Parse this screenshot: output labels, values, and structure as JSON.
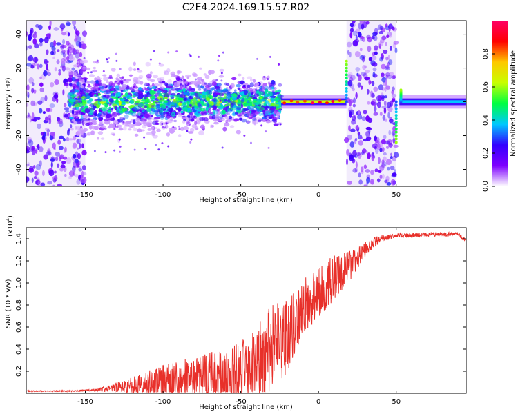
{
  "title": "C2E4.2024.169.15.57.R02",
  "colors": {
    "snr_line": "#e8302a",
    "frame": "#000000",
    "noise_band": "#ece4fb"
  },
  "chart_data": [
    {
      "type": "heatmap",
      "xlabel": "Height of straight line (km)",
      "ylabel": "Frequency (Hz)",
      "xlim": [
        -188,
        95
      ],
      "ylim": [
        -50,
        48
      ],
      "x_ticks": [
        -150,
        -100,
        -50,
        0,
        50
      ],
      "x_tick_labels": [
        "-150",
        "-100",
        "-50",
        "0",
        "50"
      ],
      "y_ticks": [
        -40,
        -20,
        0,
        20,
        40
      ],
      "y_tick_labels": [
        "-40",
        "-20",
        "0",
        "20",
        "40"
      ],
      "colorbar": {
        "label": "Normalized spectral amplitude",
        "range": [
          0,
          1
        ],
        "ticks": [
          0.0,
          0.2,
          0.4,
          0.6,
          0.8
        ],
        "tick_labels": [
          "0.0",
          "0.2",
          "0.4",
          "0.6",
          "0.8"
        ],
        "colormap": [
          "#ffffff",
          "#7e00ff",
          "#3300ff",
          "#00c8ff",
          "#00ff40",
          "#c8ff00",
          "#ffc800",
          "#ff0000",
          "#ff0066"
        ]
      },
      "regions": [
        {
          "x": [
            -188,
            -150
          ],
          "f_spread": 48,
          "amplitude": 0.2,
          "pattern": "broadband noise"
        },
        {
          "x": [
            -160,
            -24
          ],
          "f_spread": 8,
          "amplitude": 0.45,
          "pattern": "signal band centered at 0 Hz"
        },
        {
          "x": [
            -24,
            18
          ],
          "f_spread": 2,
          "amplitude": 0.85,
          "pattern": "narrow carrier with red peaks"
        },
        {
          "x": [
            18,
            50
          ],
          "f_spread": 48,
          "amplitude": 0.2,
          "pattern": "broadband noise gap"
        },
        {
          "x": [
            52,
            95
          ],
          "f_spread": 2,
          "amplitude": 0.5,
          "pattern": "clean narrow carrier"
        }
      ]
    },
    {
      "type": "line",
      "xlabel": "Height of straight line (km)",
      "ylabel": "SNR (10 * v/v)",
      "y_multiplier": "(x10",
      "y_multiplier_exp": "4",
      "y_multiplier_close": ")",
      "xlim": [
        -188,
        95
      ],
      "ylim": [
        0,
        1.5
      ],
      "x_ticks": [
        -150,
        -100,
        -50,
        0,
        50
      ],
      "x_tick_labels": [
        "-150",
        "-100",
        "-50",
        "0",
        "50"
      ],
      "y_ticks": [
        0.2,
        0.4,
        0.6,
        0.8,
        1.0,
        1.2,
        1.4
      ],
      "y_tick_labels": [
        "0.2",
        "0.4",
        "0.6",
        "0.8",
        "1.0",
        "1.2",
        "1.4"
      ],
      "series": [
        {
          "x": [
            -188,
            -160,
            -145,
            -135,
            -125,
            -115,
            -105,
            -95,
            -85,
            -75,
            -65,
            -55,
            -45,
            -38,
            -32,
            -28,
            -25,
            -22,
            -19,
            -16,
            -12,
            -8,
            -4,
            0,
            5,
            10,
            15,
            20,
            25,
            30,
            35,
            40,
            50,
            60,
            70,
            80,
            90,
            95
          ],
          "mean": [
            0.02,
            0.02,
            0.03,
            0.04,
            0.06,
            0.08,
            0.1,
            0.12,
            0.14,
            0.16,
            0.18,
            0.2,
            0.24,
            0.3,
            0.38,
            0.42,
            0.45,
            0.48,
            0.55,
            0.62,
            0.72,
            0.8,
            0.85,
            0.9,
            0.98,
            1.05,
            1.1,
            1.15,
            1.22,
            1.3,
            1.36,
            1.4,
            1.43,
            1.43,
            1.44,
            1.44,
            1.44,
            1.38
          ],
          "amp": [
            0.005,
            0.006,
            0.01,
            0.03,
            0.06,
            0.1,
            0.14,
            0.16,
            0.18,
            0.2,
            0.22,
            0.24,
            0.28,
            0.35,
            0.4,
            0.4,
            0.38,
            0.38,
            0.32,
            0.3,
            0.28,
            0.26,
            0.24,
            0.24,
            0.22,
            0.2,
            0.18,
            0.14,
            0.1,
            0.07,
            0.05,
            0.03,
            0.02,
            0.02,
            0.02,
            0.02,
            0.02,
            0.02
          ]
        }
      ]
    }
  ]
}
